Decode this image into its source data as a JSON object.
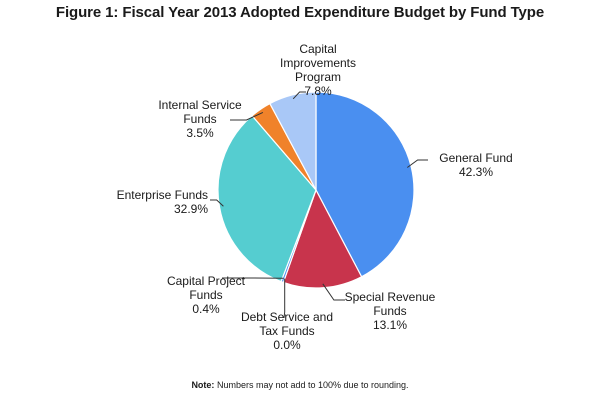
{
  "chart_data": {
    "type": "pie",
    "title": "Figure 1: Fiscal Year 2013 Adopted Expenditure Budget by Fund Type",
    "start_angle_deg": 0,
    "direction": "clockwise",
    "slices": [
      {
        "key": "general",
        "label_lines": [
          "General Fund"
        ],
        "percent_text": "42.3%",
        "value": 42.3,
        "color": "#4a8ff0"
      },
      {
        "key": "special",
        "label_lines": [
          "Special Revenue",
          "Funds"
        ],
        "percent_text": "13.1%",
        "value": 13.1,
        "color": "#c8344c"
      },
      {
        "key": "debt",
        "label_lines": [
          "Debt Service and",
          "Tax Funds"
        ],
        "percent_text": "0.0%",
        "value": 0.0,
        "color": "#7b5a9c"
      },
      {
        "key": "capproj",
        "label_lines": [
          "Capital Project",
          "Funds"
        ],
        "percent_text": "0.4%",
        "value": 0.4,
        "color": "#4a8ff0"
      },
      {
        "key": "enterprise",
        "label_lines": [
          "Enterprise Funds"
        ],
        "percent_text": "32.9%",
        "value": 32.9,
        "color": "#55cdd0"
      },
      {
        "key": "internal",
        "label_lines": [
          "Internal Service",
          "Funds"
        ],
        "percent_text": "3.5%",
        "value": 3.5,
        "color": "#f0822a"
      },
      {
        "key": "cip",
        "label_lines": [
          "Capital",
          "Improvements",
          "Program"
        ],
        "percent_text": "7.8%",
        "value": 7.8,
        "color": "#a9c8f7"
      }
    ]
  },
  "note": {
    "bold": "Note:",
    "text": " Numbers may not add to 100% due to rounding."
  }
}
